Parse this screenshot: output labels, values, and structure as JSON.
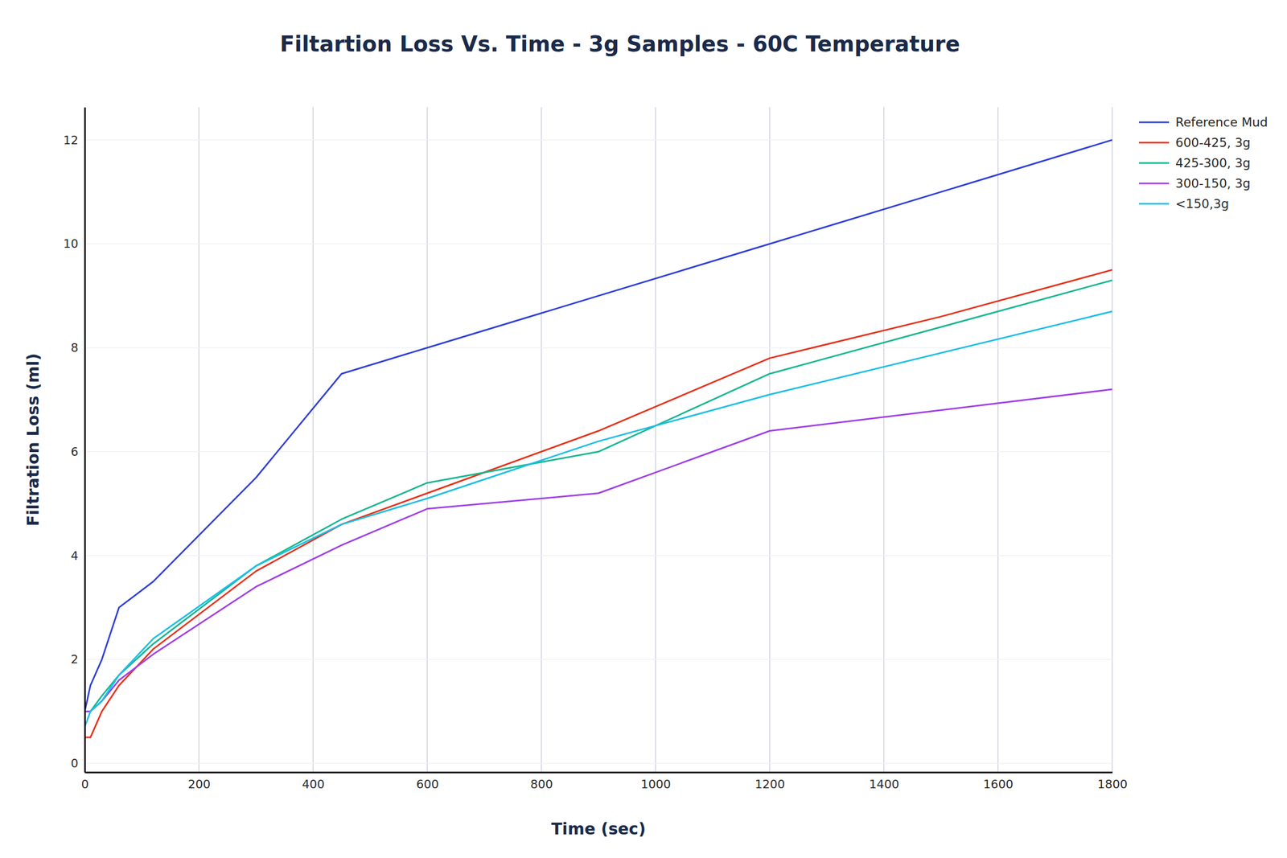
{
  "chart_data": {
    "type": "line",
    "title": "Filtartion Loss Vs. Time - 3g Samples - 60C Temperature",
    "x_label": "Time (sec)",
    "y_label": "Filtration Loss (ml)",
    "xlim": [
      0,
      1800
    ],
    "xticks": [
      0,
      200,
      400,
      600,
      800,
      1000,
      1200,
      1400,
      1600,
      1800
    ],
    "ylim": [
      -0.17,
      12.63
    ],
    "yticks": [
      0,
      2,
      4,
      6,
      8,
      10,
      12
    ],
    "grid": true,
    "legend": "right",
    "series": [
      {
        "name": "Reference Mud",
        "color": "#2f3fdc",
        "x": [
          0,
          10,
          30,
          60,
          120,
          300,
          450,
          600,
          900,
          1200,
          1800
        ],
        "values": [
          1.0,
          1.5,
          2.0,
          3.0,
          3.5,
          5.5,
          7.5,
          8.0,
          9.0,
          10.0,
          12.0
        ]
      },
      {
        "name": "600-425, 3g",
        "color": "#e8321a",
        "x": [
          0,
          10,
          30,
          60,
          120,
          300,
          450,
          600,
          900,
          1200,
          1500,
          1800
        ],
        "values": [
          0.5,
          0.5,
          1.0,
          1.5,
          2.2,
          3.7,
          4.6,
          5.2,
          6.4,
          7.8,
          8.6,
          9.5
        ]
      },
      {
        "name": "425-300, 3g",
        "color": "#17b890",
        "x": [
          0,
          10,
          30,
          60,
          120,
          300,
          450,
          600,
          900,
          1200,
          1800
        ],
        "values": [
          1.0,
          1.0,
          1.3,
          1.7,
          2.3,
          3.8,
          4.7,
          5.4,
          6.0,
          7.5,
          9.3
        ]
      },
      {
        "name": "300-150, 3g",
        "color": "#a040e8",
        "x": [
          0,
          10,
          30,
          60,
          120,
          300,
          450,
          600,
          900,
          1200,
          1800
        ],
        "values": [
          1.0,
          1.0,
          1.2,
          1.6,
          2.1,
          3.4,
          4.2,
          4.9,
          5.2,
          6.4,
          7.2
        ]
      },
      {
        "name": "<150,3g",
        "color": "#1bbfe8",
        "x": [
          0,
          10,
          30,
          60,
          120,
          300,
          450,
          600,
          900,
          1200,
          1800
        ],
        "values": [
          0.7,
          1.0,
          1.2,
          1.7,
          2.4,
          3.8,
          4.6,
          5.1,
          6.2,
          7.1,
          8.7
        ]
      }
    ]
  }
}
